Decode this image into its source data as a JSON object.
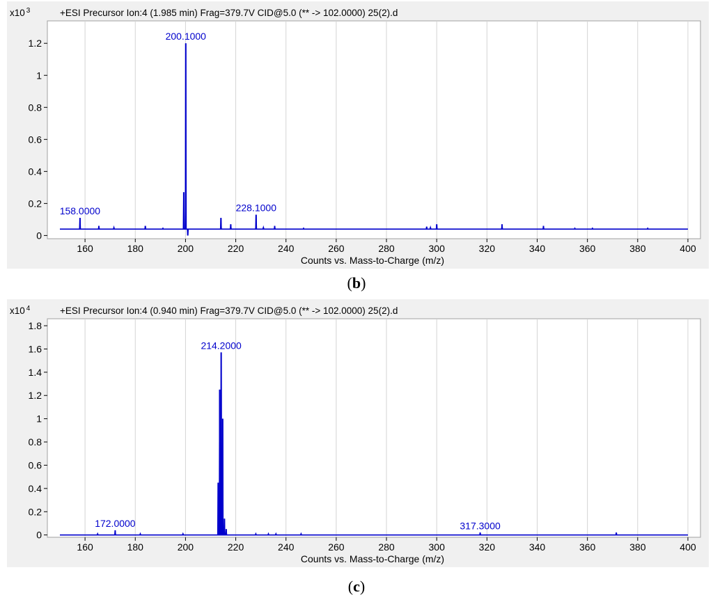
{
  "chart_data": [
    {
      "type": "line",
      "panel": "b",
      "title": "+ESI Precursor Ion:4 (1.985 min) Frag=379.7V CID@5.0 (** -> 102.0000) 25(2).d",
      "y_multiplier_label": "x10",
      "y_multiplier_exp": "3",
      "xlabel": "Counts vs. Mass-to-Charge (m/z)",
      "ylabel": "",
      "xlim": [
        145,
        405
      ],
      "ylim": [
        -0.02,
        1.34
      ],
      "xticks": [
        160,
        180,
        200,
        220,
        240,
        260,
        280,
        300,
        320,
        340,
        360,
        380,
        400
      ],
      "yticks": [
        0,
        0.2,
        0.4,
        0.6,
        0.8,
        1,
        1.2
      ],
      "ytick_labels": [
        "0",
        "0.2",
        "0.4",
        "0.6",
        "0.8",
        "1",
        "1.2"
      ],
      "grid": true,
      "color": "#0000cc",
      "baseline": 0.04,
      "range": [
        150,
        400
      ],
      "peaks": [
        {
          "x": 158.0,
          "y": 0.11
        },
        {
          "x": 165.5,
          "y": 0.06
        },
        {
          "x": 171.5,
          "y": 0.05
        },
        {
          "x": 184.0,
          "y": 0.06
        },
        {
          "x": 191.0,
          "y": 0.045
        },
        {
          "x": 199.3,
          "y": 0.27
        },
        {
          "x": 200.1,
          "y": 1.2
        },
        {
          "x": 200.9,
          "y": 0.0
        },
        {
          "x": 214.1,
          "y": 0.11
        },
        {
          "x": 218.0,
          "y": 0.07
        },
        {
          "x": 228.1,
          "y": 0.13
        },
        {
          "x": 231.0,
          "y": 0.05
        },
        {
          "x": 235.5,
          "y": 0.06
        },
        {
          "x": 247.0,
          "y": 0.045
        },
        {
          "x": 296.0,
          "y": 0.055
        },
        {
          "x": 297.5,
          "y": 0.05
        },
        {
          "x": 300.0,
          "y": 0.07
        },
        {
          "x": 326.0,
          "y": 0.07
        },
        {
          "x": 342.5,
          "y": 0.06
        },
        {
          "x": 355.0,
          "y": 0.045
        },
        {
          "x": 362.0,
          "y": 0.045
        },
        {
          "x": 384.0,
          "y": 0.045
        }
      ],
      "annotations": [
        {
          "x": 158.0,
          "y": 0.11,
          "label": "158.0000"
        },
        {
          "x": 200.1,
          "y": 1.2,
          "label": "200.1000"
        },
        {
          "x": 228.1,
          "y": 0.13,
          "label": "228.1000"
        }
      ]
    },
    {
      "type": "line",
      "panel": "c",
      "title": "+ESI Precursor Ion:4 (0.940 min) Frag=379.7V CID@5.0 (** -> 102.0000) 25(2).d",
      "y_multiplier_label": "x10",
      "y_multiplier_exp": "4",
      "xlabel": "Counts vs. Mass-to-Charge (m/z)",
      "ylabel": "",
      "xlim": [
        145,
        405
      ],
      "ylim": [
        -0.02,
        1.86
      ],
      "xticks": [
        160,
        180,
        200,
        220,
        240,
        260,
        280,
        300,
        320,
        340,
        360,
        380,
        400
      ],
      "yticks": [
        0,
        0.2,
        0.4,
        0.6,
        0.8,
        1,
        1.2,
        1.4,
        1.6,
        1.8
      ],
      "ytick_labels": [
        "0",
        "0.2",
        "0.4",
        "0.6",
        "0.8",
        "1",
        "1.2",
        "1.4",
        "1.6",
        "1.8"
      ],
      "grid": true,
      "color": "#0000cc",
      "baseline": 0.0,
      "range": [
        150,
        400
      ],
      "peaks": [
        {
          "x": 165.0,
          "y": 0.01
        },
        {
          "x": 172.0,
          "y": 0.04
        },
        {
          "x": 182.0,
          "y": 0.01
        },
        {
          "x": 199.0,
          "y": 0.01
        },
        {
          "x": 213.0,
          "y": 0.45
        },
        {
          "x": 213.6,
          "y": 1.25
        },
        {
          "x": 214.2,
          "y": 1.57
        },
        {
          "x": 214.8,
          "y": 1.0
        },
        {
          "x": 215.5,
          "y": 0.14
        },
        {
          "x": 216.2,
          "y": 0.05
        },
        {
          "x": 228.0,
          "y": 0.01
        },
        {
          "x": 233.0,
          "y": 0.01
        },
        {
          "x": 236.0,
          "y": 0.01
        },
        {
          "x": 246.0,
          "y": 0.01
        },
        {
          "x": 317.3,
          "y": 0.02
        },
        {
          "x": 371.5,
          "y": 0.02
        }
      ],
      "annotations": [
        {
          "x": 172.0,
          "y": 0.04,
          "label": "172.0000"
        },
        {
          "x": 214.2,
          "y": 1.57,
          "label": "214.2000"
        },
        {
          "x": 317.3,
          "y": 0.02,
          "label": "317.3000"
        }
      ]
    }
  ],
  "captions": {
    "b": "b",
    "c": "c"
  }
}
